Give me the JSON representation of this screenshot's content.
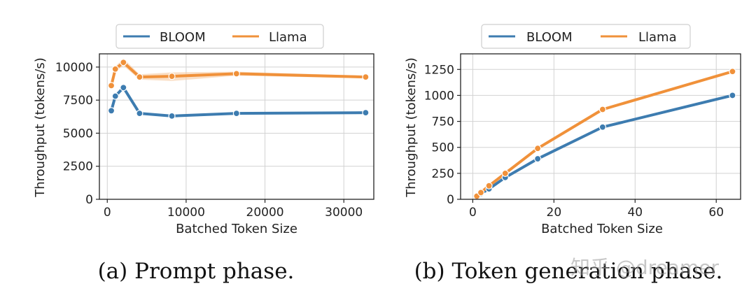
{
  "colors": {
    "bloom": "#3d7cb0",
    "llama": "#f0913a",
    "band": "#f6caa0",
    "grid": "#d2d2d2",
    "axis": "#222222"
  },
  "watermark": "知乎 @dreamer",
  "chart_data": [
    {
      "type": "line",
      "caption": "(a) Prompt phase.",
      "xlabel": "Batched Token Size",
      "ylabel": "Throughput (tokens/s)",
      "xlim": [
        -1000,
        33800
      ],
      "ylim": [
        0,
        11000
      ],
      "xticks": [
        0,
        10000,
        20000,
        30000
      ],
      "xtick_labels": [
        "0",
        "10000",
        "20000",
        "30000"
      ],
      "yticks": [
        0,
        2500,
        5000,
        7500,
        10000
      ],
      "ytick_labels": [
        "0",
        "2500",
        "5000",
        "7500",
        "10000"
      ],
      "grid": true,
      "legend": {
        "position": "top",
        "entries": [
          "BLOOM",
          "Llama"
        ]
      },
      "series": [
        {
          "name": "BLOOM",
          "color": "bloom",
          "x": [
            512,
            1024,
            2048,
            4096,
            8192,
            16384,
            32768
          ],
          "y": [
            6700,
            7800,
            8450,
            6500,
            6300,
            6500,
            6550
          ]
        },
        {
          "name": "Llama",
          "color": "llama",
          "x": [
            512,
            1024,
            2048,
            4096,
            8192,
            16384,
            32768
          ],
          "y": [
            8600,
            9850,
            10350,
            9250,
            9300,
            9500,
            9250
          ],
          "band_low": [
            8450,
            9650,
            10100,
            9050,
            8950,
            9350,
            9150
          ],
          "band_high": [
            8750,
            10050,
            10650,
            9450,
            9600,
            9650,
            9350
          ]
        }
      ]
    },
    {
      "type": "line",
      "caption": "(b) Token generation phase.",
      "xlabel": "Batched Token Size",
      "ylabel": "Throughput (tokens/s)",
      "xlim": [
        -3,
        66
      ],
      "ylim": [
        0,
        1400
      ],
      "xticks": [
        0,
        20,
        40,
        60
      ],
      "xtick_labels": [
        "0",
        "20",
        "40",
        "60"
      ],
      "yticks": [
        0,
        250,
        500,
        750,
        1000,
        1250
      ],
      "ytick_labels": [
        "0",
        "250",
        "500",
        "750",
        "1000",
        "1250"
      ],
      "grid": true,
      "legend": {
        "position": "top",
        "entries": [
          "BLOOM",
          "Llama"
        ]
      },
      "series": [
        {
          "name": "BLOOM",
          "color": "bloom",
          "x": [
            1,
            2,
            4,
            8,
            16,
            32,
            64
          ],
          "y": [
            25,
            55,
            100,
            210,
            390,
            695,
            1000
          ]
        },
        {
          "name": "Llama",
          "color": "llama",
          "x": [
            1,
            2,
            4,
            8,
            16,
            32,
            64
          ],
          "y": [
            30,
            65,
            130,
            250,
            490,
            865,
            1230
          ]
        }
      ]
    }
  ]
}
